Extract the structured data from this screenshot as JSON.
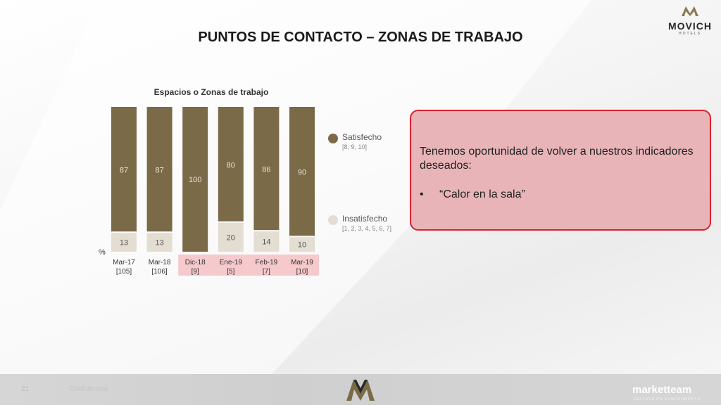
{
  "header": {
    "title": "PUNTOS DE CONTACTO – ZONAS DE TRABAJO",
    "logo_word": "MOVICH",
    "logo_sub": "HOTELS"
  },
  "chart_data": {
    "type": "bar",
    "stacked": true,
    "title": "Espacios o Zonas de trabajo",
    "unit_label": "%",
    "categories": [
      "Mar-17",
      "Mar-18",
      "Dic-18",
      "Ene-19",
      "Feb-19",
      "Mar-19"
    ],
    "sample_sizes": [
      "[105]",
      "[106]",
      "[9]",
      "[5]",
      "[7]",
      "[10]"
    ],
    "highlighted_categories": [
      "Dic-18",
      "Ene-19",
      "Feb-19",
      "Mar-19"
    ],
    "series": [
      {
        "name": "Satisfecho",
        "range": "[8, 9, 10]",
        "color": "#7a6a48",
        "values": [
          87,
          87,
          100,
          80,
          86,
          90
        ]
      },
      {
        "name": "Insatisfecho",
        "range": "[1, 2, 3, 4, 5, 6, 7]",
        "color": "#e4ddd2",
        "values": [
          13,
          13,
          null,
          20,
          14,
          10
        ]
      }
    ],
    "ylim": [
      0,
      100
    ],
    "highlight_color": "#f6c9cc"
  },
  "callout": {
    "text": "Tenemos oportunidad de volver a nuestros indicadores deseados:",
    "bullet_symbol": "•",
    "bullet": "“Calor en la sala”"
  },
  "footer": {
    "page": "21",
    "confidential": "Confidencial",
    "brand": "marketteam",
    "tagline": "CULTURA DE CONOCIMIENTO"
  }
}
